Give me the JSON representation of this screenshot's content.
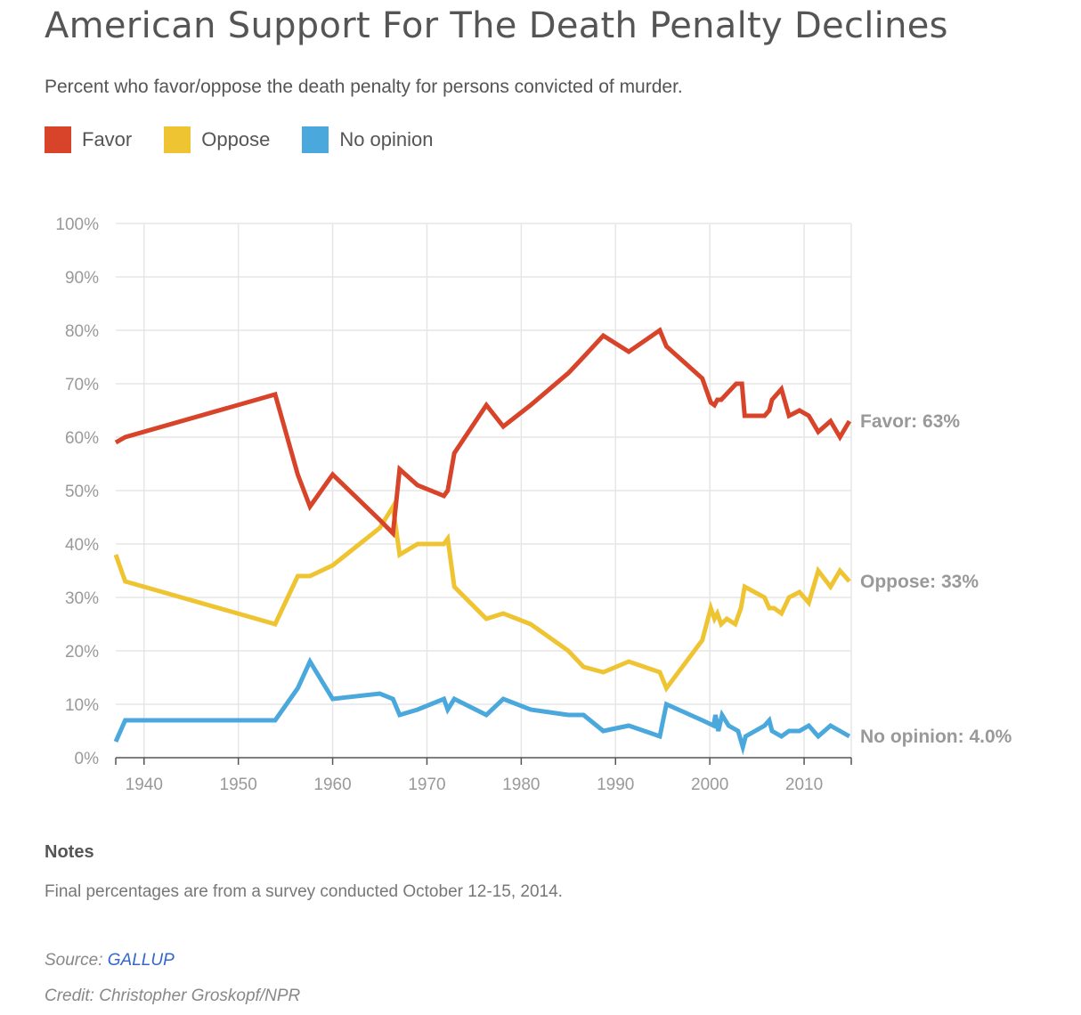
{
  "colors": {
    "favor": "#d8442a",
    "oppose": "#efc433",
    "no_opinion": "#4aa8dc",
    "grid": "#e6e6e6",
    "tick_text": "#999999",
    "end_label": "#999999"
  },
  "notes": {
    "title": "Notes",
    "text": "Final percentages are from a survey conducted October 12-15, 2014."
  },
  "source": {
    "label": "Source:",
    "name": "GALLUP"
  },
  "credit": "Credit: Christopher Groskopf/NPR",
  "chart_data": {
    "type": "line",
    "title": "American Support For The Death Penalty Declines",
    "subtitle": "Percent who favor/oppose the death penalty for persons convicted of murder.",
    "xlim": [
      1937,
      2015
    ],
    "ylim": [
      0,
      100
    ],
    "x_ticks": [
      1940,
      1950,
      1960,
      1970,
      1980,
      1990,
      2000,
      2010
    ],
    "y_ticks": [
      0,
      10,
      20,
      30,
      40,
      50,
      60,
      70,
      80,
      90,
      100
    ],
    "y_tick_format": "%",
    "legend": [
      "Favor",
      "Oppose",
      "No opinion"
    ],
    "legend_position": "top-left",
    "series": [
      {
        "name": "Favor",
        "color_key": "favor",
        "end_label": "Favor: 63%",
        "points": [
          [
            1937,
            59
          ],
          [
            1938,
            60
          ],
          [
            1953.9,
            68
          ],
          [
            1956.3,
            53
          ],
          [
            1957.6,
            47
          ],
          [
            1960,
            53
          ],
          [
            1965,
            44.5
          ],
          [
            1966.4,
            42
          ],
          [
            1967.1,
            54
          ],
          [
            1969,
            51
          ],
          [
            1971.8,
            49
          ],
          [
            1972.2,
            50
          ],
          [
            1972.9,
            57
          ],
          [
            1976.3,
            66
          ],
          [
            1978.1,
            62
          ],
          [
            1981,
            66
          ],
          [
            1985,
            72
          ],
          [
            1986.6,
            75
          ],
          [
            1988.7,
            79
          ],
          [
            1991.4,
            76
          ],
          [
            1994.7,
            80
          ],
          [
            1995.4,
            77
          ],
          [
            1999.2,
            71
          ],
          [
            2000.1,
            66.5
          ],
          [
            2000.5,
            66
          ],
          [
            2000.8,
            67
          ],
          [
            2001.2,
            67
          ],
          [
            2002.8,
            70
          ],
          [
            2003.4,
            70
          ],
          [
            2003.7,
            64
          ],
          [
            2005.8,
            64
          ],
          [
            2006.3,
            65
          ],
          [
            2006.6,
            67
          ],
          [
            2007.6,
            69
          ],
          [
            2008.4,
            64
          ],
          [
            2009.5,
            65
          ],
          [
            2010.5,
            64
          ],
          [
            2011.5,
            61
          ],
          [
            2012.8,
            63
          ],
          [
            2013.8,
            60
          ],
          [
            2014.8,
            63
          ]
        ]
      },
      {
        "name": "Oppose",
        "color_key": "oppose",
        "end_label": "Oppose: 33%",
        "points": [
          [
            1937,
            38
          ],
          [
            1938,
            33
          ],
          [
            1953.9,
            25
          ],
          [
            1956.3,
            34
          ],
          [
            1957.6,
            34
          ],
          [
            1960,
            36
          ],
          [
            1965,
            43
          ],
          [
            1966.4,
            47
          ],
          [
            1967.1,
            38
          ],
          [
            1969,
            40
          ],
          [
            1971.8,
            40
          ],
          [
            1972.2,
            41
          ],
          [
            1972.9,
            32
          ],
          [
            1976.3,
            26
          ],
          [
            1978.1,
            27
          ],
          [
            1981,
            25
          ],
          [
            1985,
            20
          ],
          [
            1986.6,
            17
          ],
          [
            1988.7,
            16
          ],
          [
            1991.4,
            18
          ],
          [
            1994.7,
            16
          ],
          [
            1995.4,
            13
          ],
          [
            1999.2,
            22
          ],
          [
            2000.1,
            28
          ],
          [
            2000.5,
            26
          ],
          [
            2000.8,
            27
          ],
          [
            2001.2,
            25
          ],
          [
            2001.8,
            26
          ],
          [
            2002.7,
            25
          ],
          [
            2003.3,
            28
          ],
          [
            2003.7,
            32
          ],
          [
            2005.8,
            30
          ],
          [
            2006.3,
            28
          ],
          [
            2006.8,
            28
          ],
          [
            2007.6,
            27
          ],
          [
            2008.4,
            30
          ],
          [
            2009.5,
            31
          ],
          [
            2010.5,
            29
          ],
          [
            2011.5,
            35
          ],
          [
            2012.8,
            32
          ],
          [
            2013.8,
            35
          ],
          [
            2014.8,
            33
          ]
        ]
      },
      {
        "name": "No opinion",
        "color_key": "no_opinion",
        "end_label": "No opinion: 4.0%",
        "points": [
          [
            1937,
            3
          ],
          [
            1938,
            7
          ],
          [
            1953.9,
            7
          ],
          [
            1956.3,
            13
          ],
          [
            1957.6,
            18
          ],
          [
            1960,
            11
          ],
          [
            1965,
            12
          ],
          [
            1966.4,
            11
          ],
          [
            1967.1,
            8
          ],
          [
            1969,
            9
          ],
          [
            1971.8,
            11
          ],
          [
            1972.2,
            9
          ],
          [
            1972.9,
            11
          ],
          [
            1976.3,
            8
          ],
          [
            1978.1,
            11
          ],
          [
            1981,
            9
          ],
          [
            1985,
            8
          ],
          [
            1986.6,
            8
          ],
          [
            1988.7,
            5
          ],
          [
            1991.4,
            6
          ],
          [
            1994.7,
            4
          ],
          [
            1995.4,
            10
          ],
          [
            1999.2,
            7
          ],
          [
            2000.4,
            6
          ],
          [
            2000.6,
            8
          ],
          [
            2000.9,
            5
          ],
          [
            2001.3,
            8
          ],
          [
            2002,
            6
          ],
          [
            2003,
            5
          ],
          [
            2003.5,
            2
          ],
          [
            2003.8,
            4
          ],
          [
            2005.8,
            6
          ],
          [
            2006.3,
            7
          ],
          [
            2006.6,
            5
          ],
          [
            2007.6,
            4
          ],
          [
            2008.4,
            5
          ],
          [
            2009.5,
            5
          ],
          [
            2010.5,
            6
          ],
          [
            2011.5,
            4
          ],
          [
            2012.8,
            6
          ],
          [
            2013.8,
            5
          ],
          [
            2014.8,
            4
          ]
        ]
      }
    ]
  }
}
